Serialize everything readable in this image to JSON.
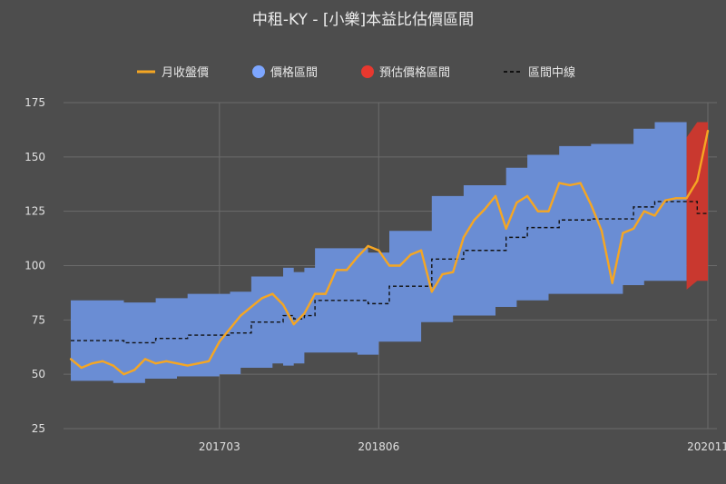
{
  "chart_data": {
    "type": "area",
    "title": "中租-KY - [小樂]本益比估價區間",
    "legend": [
      {
        "label": "月收盤價",
        "color": "#f5a623",
        "marker": "line"
      },
      {
        "label": "價格區間",
        "color": "#7da6ff",
        "marker": "dot"
      },
      {
        "label": "預估價格區間",
        "color": "#e8382f",
        "marker": "dot"
      },
      {
        "label": "區間中線",
        "color": "#111111",
        "marker": "dashed-line"
      }
    ],
    "legend_position": "top",
    "x_tick_labels": [
      "201703",
      "201806",
      "202011"
    ],
    "y_ticks": [
      25,
      50,
      75,
      100,
      125,
      150,
      175
    ],
    "ylim": [
      25,
      175
    ],
    "grid": true,
    "colors": {
      "background": "#4d4d4d",
      "band": "#6a8dd4",
      "forecast": "#c9382f",
      "price": "#f5a623",
      "midline": "#111111",
      "grid": "#6b6b6b"
    },
    "series": [
      {
        "name": "價格區間",
        "role": "band-upper",
        "values": [
          84,
          84,
          84,
          84,
          84,
          83,
          83,
          83,
          85,
          85,
          85,
          87,
          87,
          87,
          87,
          88,
          88,
          95,
          95,
          95,
          99,
          97,
          99,
          108,
          108,
          108,
          108,
          108,
          106,
          106,
          116,
          116,
          116,
          116,
          132,
          132,
          132,
          137,
          137,
          137,
          137,
          145,
          145,
          151,
          151,
          151,
          155,
          155,
          155,
          156,
          156,
          156,
          156,
          163,
          163,
          166,
          166,
          166,
          166,
          159,
          159
        ]
      },
      {
        "name": "價格區間",
        "role": "band-lower",
        "values": [
          47,
          47,
          47,
          47,
          47,
          46,
          46,
          46,
          48,
          48,
          48,
          49,
          49,
          49,
          49,
          50,
          50,
          53,
          53,
          53,
          55,
          54,
          55,
          60,
          60,
          60,
          60,
          60,
          59,
          59,
          65,
          65,
          65,
          65,
          74,
          74,
          74,
          77,
          77,
          77,
          77,
          81,
          81,
          84,
          84,
          84,
          87,
          87,
          87,
          87,
          87,
          87,
          87,
          91,
          91,
          93,
          93,
          93,
          93,
          89,
          89
        ]
      },
      {
        "name": "區間中線",
        "role": "midline",
        "values": [
          65.5,
          65.5,
          65.5,
          65.5,
          65.5,
          64.5,
          64.5,
          64.5,
          66.5,
          66.5,
          66.5,
          68,
          68,
          68,
          68,
          69,
          69,
          74,
          74,
          74,
          77,
          75.5,
          77,
          84,
          84,
          84,
          84,
          84,
          82.5,
          82.5,
          90.5,
          90.5,
          90.5,
          90.5,
          103,
          103,
          103,
          107,
          107,
          107,
          107,
          113,
          113,
          117.5,
          117.5,
          117.5,
          121,
          121,
          121,
          121.5,
          121.5,
          121.5,
          121.5,
          127,
          127,
          129.5,
          129.5,
          129.5,
          129.5,
          124,
          124
        ]
      },
      {
        "name": "月收盤價",
        "role": "price",
        "values": [
          57,
          53,
          55,
          56,
          54,
          50,
          52,
          57,
          55,
          56,
          55,
          54,
          55,
          56,
          65,
          71,
          77,
          81,
          85,
          87,
          82,
          73,
          78,
          87,
          87,
          98,
          98,
          104,
          109,
          107,
          100,
          100,
          105,
          107,
          88,
          96,
          97,
          113,
          121,
          126,
          132,
          117,
          129,
          132,
          125,
          125,
          138,
          137,
          138,
          128,
          116,
          92,
          115,
          117,
          125,
          123,
          130,
          131,
          131,
          139,
          162
        ]
      },
      {
        "name": "預估價格區間",
        "role": "forecast-band",
        "upper": [
          159,
          166,
          166
        ],
        "lower": [
          89,
          93,
          93
        ]
      }
    ],
    "forecast_start_index": 58
  }
}
